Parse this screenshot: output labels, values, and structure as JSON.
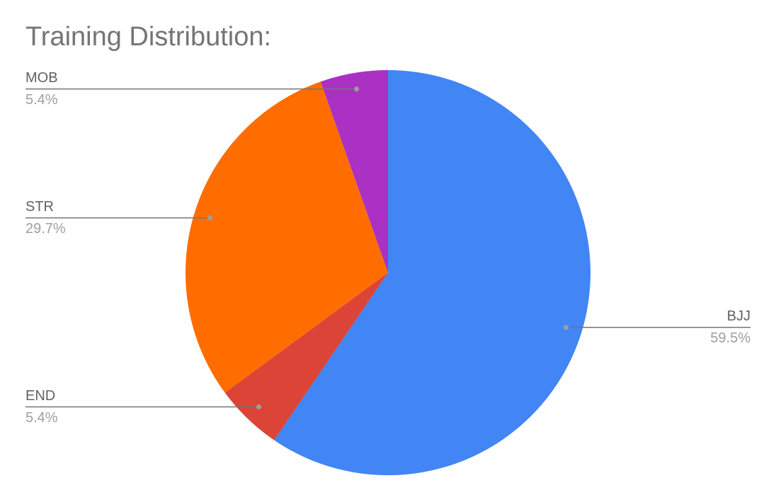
{
  "chart_data": {
    "type": "pie",
    "title": "Training Distribution:",
    "categories": [
      "BJJ",
      "END",
      "STR",
      "MOB"
    ],
    "values": [
      59.5,
      5.4,
      29.7,
      5.4
    ],
    "value_labels": [
      "59.5%",
      "5.4%",
      "29.7%",
      "5.4%"
    ],
    "colors": [
      "#4285f4",
      "#db4437",
      "#ff6d00",
      "#ab30c4"
    ]
  }
}
